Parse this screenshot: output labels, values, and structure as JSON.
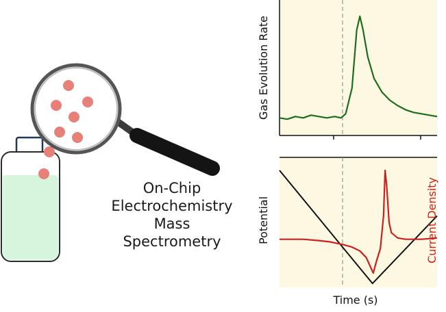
{
  "illustration": {
    "caption_lines": [
      "On-Chip",
      "Electrochemistry",
      "Mass",
      "Spectrometry"
    ],
    "colors": {
      "bubble": "#e8807a",
      "liquid": "#d6f5dc",
      "handle": "#141414",
      "magnifier_rim": "#555555"
    }
  },
  "chart_data": [
    {
      "type": "line",
      "title": "",
      "xlabel": "",
      "ylabel": "Gas Evolution Rate",
      "xlim": [
        0,
        10
      ],
      "ylim": [
        0,
        1
      ],
      "background": "#fdf8e1",
      "marker_x": 4.0,
      "series": [
        {
          "color": "#1e6a1e",
          "x": [
            0,
            0.5,
            1,
            1.5,
            2,
            2.5,
            3,
            3.5,
            3.9,
            4.2,
            4.6,
            4.9,
            5.1,
            5.3,
            5.6,
            6.0,
            6.5,
            7.0,
            7.5,
            8.0,
            8.5,
            9.0,
            9.5,
            10
          ],
          "y": [
            0.13,
            0.12,
            0.14,
            0.13,
            0.15,
            0.14,
            0.13,
            0.14,
            0.13,
            0.16,
            0.35,
            0.78,
            0.88,
            0.78,
            0.58,
            0.42,
            0.32,
            0.26,
            0.22,
            0.19,
            0.17,
            0.16,
            0.15,
            0.14
          ]
        }
      ]
    },
    {
      "type": "line",
      "title": "",
      "xlabel": "Time (s)",
      "ylabel": "Potential",
      "y2label": "Current Density",
      "xlim": [
        0,
        10
      ],
      "ylim": [
        0,
        1
      ],
      "background": "#fdf8e1",
      "marker_x": 4.0,
      "series": [
        {
          "color": "#111111",
          "x": [
            0,
            5.9,
            10
          ],
          "y": [
            0.9,
            0.03,
            0.55
          ]
        },
        {
          "color": "#cc2020",
          "x": [
            0,
            1.5,
            2.5,
            3.2,
            4.0,
            4.6,
            5.1,
            5.5,
            5.8,
            5.95,
            6.15,
            6.4,
            6.6,
            6.7,
            6.8,
            6.95,
            7.1,
            7.5,
            8.0,
            9.0,
            10
          ],
          "y": [
            0.37,
            0.37,
            0.36,
            0.35,
            0.33,
            0.31,
            0.28,
            0.23,
            0.15,
            0.11,
            0.2,
            0.3,
            0.55,
            0.9,
            0.78,
            0.5,
            0.42,
            0.38,
            0.37,
            0.37,
            0.38
          ]
        }
      ]
    }
  ]
}
